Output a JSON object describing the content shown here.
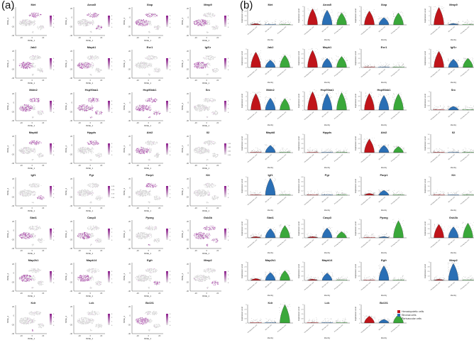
{
  "figure": {
    "panel_a_label": "(a)",
    "panel_b_label": "(b)"
  },
  "chart_data": [
    {
      "type": "scatter",
      "panel": "(a)",
      "description": "tSNE feature plots of gene expression",
      "xlabel": "tSNE_1",
      "ylabel": "tSNE_2",
      "x_ticks": [
        -20,
        0,
        20
      ],
      "y_ticks": [
        -40,
        -20,
        0,
        20
      ],
      "colorscale": [
        "#e8e8e8",
        "#8b1a8b"
      ],
      "genes": [
        "Met",
        "Anxa5",
        "Xiap",
        "Mmp9",
        "Jak2",
        "Mapk1",
        "Esr1",
        "Igf1r",
        "Mdm2",
        "Hsp90aa1",
        "Hsp90ab1",
        "Src",
        "Mapk8",
        "Hpgds",
        "Akt2",
        "Il2",
        "Igf1",
        "Pgr",
        "Parp1",
        "Kit",
        "Stat1",
        "Casp3",
        "Pparg",
        "Gsk3b",
        "Map2k1",
        "Mapk14",
        "Egfr",
        "Mmp2",
        "Kdr",
        "Lck",
        "Bcl2l1"
      ],
      "colorbar_max": {
        "Met": 4,
        "Anxa5": 4,
        "Xiap": 3,
        "Mmp9": 4,
        "Jak2": 4,
        "Mapk1": 4,
        "Esr1": 3,
        "Igf1r": 3,
        "Mdm2": 4,
        "Hsp90aa1": 4,
        "Hsp90ab1": 4,
        "Src": 3,
        "Mapk8": 3,
        "Hpgds": 3,
        "Akt2": 3,
        "Il2": 1.25,
        "Igf1": 5,
        "Pgr": 0.3,
        "Parp1": 3,
        "Kit": 2.5,
        "Stat1": 3,
        "Casp3": 3,
        "Pparg": 3,
        "Gsk3b": 3,
        "Map2k1": 3,
        "Mapk14": 3,
        "Egfr": 3,
        "Mmp2": 4,
        "Kdr": 3,
        "Lck": 2.5,
        "Bcl2l1": 3
      },
      "high_expression_cluster": {
        "Met": "top",
        "Anxa5": "top+right",
        "Xiap": "left+top",
        "Mmp9": "left",
        "Jak2": "left",
        "Mapk1": "left",
        "Esr1": "none",
        "Igf1r": "left",
        "Mdm2": "left+top",
        "Hsp90aa1": "all",
        "Hsp90ab1": "all",
        "Src": "none",
        "Mapk8": "top",
        "Hpgds": "top",
        "Akt2": "left",
        "Il2": "none",
        "Igf1": "right",
        "Pgr": "none",
        "Parp1": "top",
        "Kit": "none",
        "Stat1": "left",
        "Casp3": "left",
        "Pparg": "bottom",
        "Gsk3b": "all",
        "Map2k1": "left",
        "Mapk14": "left",
        "Egfr": "right",
        "Mmp2": "right",
        "Kdr": "bottom",
        "Lck": "none",
        "Bcl2l1": "left"
      }
    },
    {
      "type": "violin",
      "panel": "(b)",
      "xlabel": "Identity",
      "ylabel": "Expression Level",
      "categories": [
        "Hematopoietic cells",
        "Stromal cells",
        "Perivascular cells"
      ],
      "legend": [
        {
          "label": "Hematopoietic cells",
          "color": "#c0141a"
        },
        {
          "label": "Stromal cells",
          "color": "#2a6fb5"
        },
        {
          "label": "Perivascular cells",
          "color": "#3aa83a"
        }
      ],
      "series": [
        {
          "gene": "Met",
          "ymax": 3,
          "violin_height": [
            0.2,
            0.1,
            0.1
          ]
        },
        {
          "gene": "Anxa5",
          "ymax": 4,
          "violin_height": [
            3.5,
            3.2,
            2.6
          ]
        },
        {
          "gene": "Xiap",
          "ymax": 4,
          "violin_height": [
            3.0,
            1.6,
            2.6
          ]
        },
        {
          "gene": "Mmp9",
          "ymax": 4,
          "violin_height": [
            3.8,
            0.3,
            0.1
          ]
        },
        {
          "gene": "Jak2",
          "ymax": 3,
          "violin_height": [
            2.5,
            1.2,
            2.0
          ]
        },
        {
          "gene": "Mapk1",
          "ymax": 3,
          "violin_height": [
            2.8,
            1.5,
            1.8
          ]
        },
        {
          "gene": "Esr1",
          "ymax": 3,
          "violin_height": [
            0.1,
            0.1,
            0.1
          ]
        },
        {
          "gene": "Igf1r",
          "ymax": 4,
          "violin_height": [
            3.5,
            1.8,
            2.0
          ]
        },
        {
          "gene": "Mdm2",
          "ymax": 4,
          "violin_height": [
            3.6,
            2.6,
            2.5
          ]
        },
        {
          "gene": "Hsp90aa1",
          "ymax": 4,
          "violin_height": [
            4.0,
            3.6,
            3.8
          ]
        },
        {
          "gene": "Hsp90ab1",
          "ymax": 5,
          "violin_height": [
            4.5,
            4.0,
            4.4
          ]
        },
        {
          "gene": "Src",
          "ymax": 3,
          "violin_height": [
            0.1,
            0.6,
            0.1
          ]
        },
        {
          "gene": "Mapk8",
          "ymax": 3,
          "violin_height": [
            0.1,
            1.2,
            0.1
          ]
        },
        {
          "gene": "Hpgds",
          "ymax": 3,
          "violin_height": [
            0.1,
            0.1,
            0.1
          ]
        },
        {
          "gene": "Akt2",
          "ymax": 3,
          "violin_height": [
            2.2,
            1.2,
            1.0
          ]
        },
        {
          "gene": "Il2",
          "ymax": 1.5,
          "violin_height": [
            0.05,
            0.05,
            0.05
          ]
        },
        {
          "gene": "Igf1",
          "ymax": 5,
          "violin_height": [
            0.2,
            4.6,
            0.1
          ]
        },
        {
          "gene": "Pgr",
          "ymax": 0.8,
          "violin_height": [
            0.02,
            0.02,
            0.02
          ]
        },
        {
          "gene": "Parp1",
          "ymax": 3,
          "violin_height": [
            0.3,
            0.8,
            0.1
          ]
        },
        {
          "gene": "Kit",
          "ymax": 3,
          "violin_height": [
            0.1,
            0.1,
            0.1
          ]
        },
        {
          "gene": "Stat1",
          "ymax": 3,
          "violin_height": [
            0.2,
            1.5,
            2.0
          ]
        },
        {
          "gene": "Casp3",
          "ymax": 3,
          "violin_height": [
            0.2,
            1.6,
            1.0
          ]
        },
        {
          "gene": "Pparg",
          "ymax": 3,
          "violin_height": [
            0.1,
            0.2,
            2.8
          ]
        },
        {
          "gene": "Gsk3b",
          "ymax": 3,
          "violin_height": [
            2.2,
            1.8,
            2.4
          ]
        },
        {
          "gene": "Map2k1",
          "ymax": 3,
          "violin_height": [
            0.3,
            1.3,
            1.6
          ]
        },
        {
          "gene": "Mapk14",
          "ymax": 3,
          "violin_height": [
            0.2,
            1.2,
            0.1
          ]
        },
        {
          "gene": "Egfr",
          "ymax": 3,
          "violin_height": [
            0.1,
            2.4,
            0.1
          ]
        },
        {
          "gene": "Mmp2",
          "ymax": 5,
          "violin_height": [
            0.3,
            4.6,
            0.1
          ]
        },
        {
          "gene": "Kdr",
          "ymax": 3,
          "violin_height": [
            0.1,
            0.1,
            3.0
          ]
        },
        {
          "gene": "Lck",
          "ymax": 3,
          "violin_height": [
            0.05,
            0.05,
            0.05
          ]
        },
        {
          "gene": "Bcl2l1",
          "ymax": 4,
          "violin_height": [
            1.5,
            0.8,
            1.8
          ]
        }
      ]
    }
  ]
}
